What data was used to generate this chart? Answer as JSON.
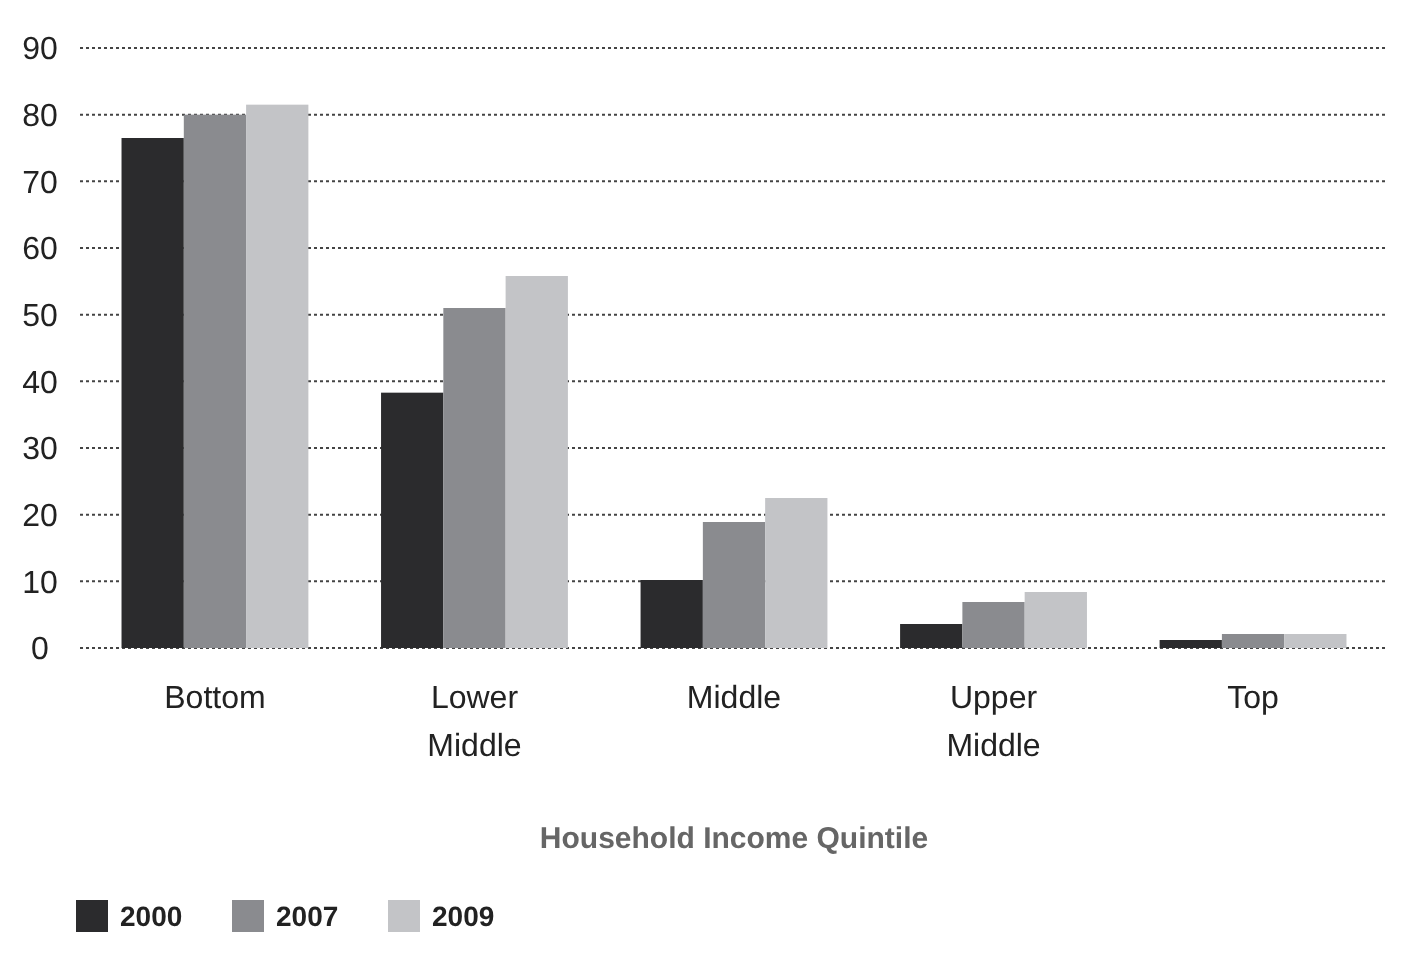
{
  "chart_data": {
    "type": "bar",
    "xlabel": "Household Income Quintile",
    "categories": [
      "Bottom",
      "Lower\nMiddle",
      "Middle",
      "Upper\nMiddle",
      "Top"
    ],
    "series": [
      {
        "name": "2000",
        "color": "#2b2b2d",
        "values": [
          76.5,
          38.3,
          10.2,
          3.6,
          1.2
        ]
      },
      {
        "name": "2007",
        "color": "#8a8b8f",
        "values": [
          80,
          51,
          18.9,
          6.9,
          2.1
        ]
      },
      {
        "name": "2009",
        "color": "#c3c4c7",
        "values": [
          81.5,
          55.8,
          22.5,
          8.4,
          2.1
        ]
      }
    ],
    "ylim": [
      0,
      90
    ],
    "yticks": [
      0,
      10,
      20,
      30,
      40,
      50,
      60,
      70,
      80,
      90
    ],
    "grid": "y",
    "legend": "bottom left"
  }
}
